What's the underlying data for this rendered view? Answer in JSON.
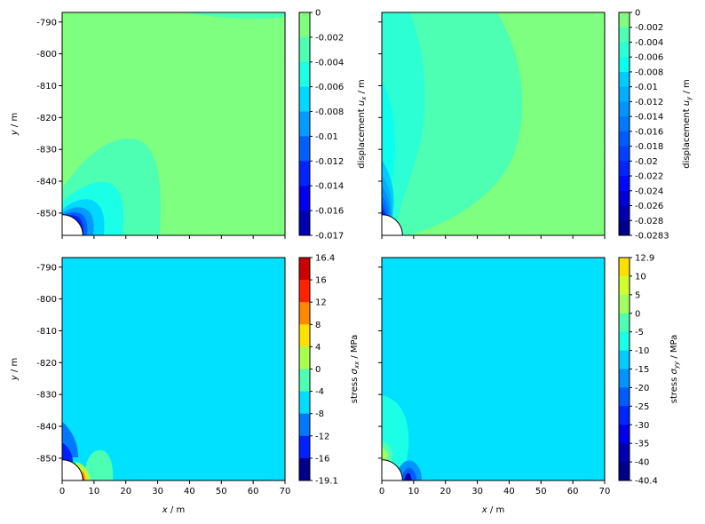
{
  "chart_data": [
    {
      "type": "heatmap",
      "quantity": "displacement u_x",
      "colorbar_label": {
        "main": "displacement ",
        "var": "u",
        "sub": "x",
        "unit": " / m"
      },
      "xlim": [
        0,
        70
      ],
      "ylim": [
        -857,
        -787
      ],
      "xticks": [
        "0",
        "10",
        "20",
        "30",
        "40",
        "50",
        "60",
        "70"
      ],
      "yticks": [
        "-790",
        "-800",
        "-810",
        "-820",
        "-830",
        "-840",
        "-850"
      ],
      "yticks_values": [
        -790,
        -800,
        -810,
        -820,
        -830,
        -840,
        -850
      ],
      "show_x_ticklabels": false,
      "show_y_ticklabels": true,
      "ylabel": "y / m",
      "xlabel": "",
      "colorbar_ticks": [
        "0",
        "-0.002",
        "-0.004",
        "-0.006",
        "-0.008",
        "-0.01",
        "-0.012",
        "-0.014",
        "-0.016",
        "-0.017"
      ],
      "colorbar_colors": [
        "#7fff7f",
        "#4dffb3",
        "#1affe6",
        "#00d8ff",
        "#009cff",
        "#0060ff",
        "#0024ff",
        "#0000ed",
        "#0000b2"
      ],
      "background_color": "#7fff7f",
      "hole": {
        "center": [
          0,
          -857
        ],
        "radius": 6.5
      }
    },
    {
      "type": "heatmap",
      "quantity": "displacement u_y",
      "colorbar_label": {
        "main": "displacement ",
        "var": "u",
        "sub": "y",
        "unit": " / m"
      },
      "xlim": [
        0,
        70
      ],
      "ylim": [
        -857,
        -787
      ],
      "xticks": [
        "0",
        "10",
        "20",
        "30",
        "40",
        "50",
        "60",
        "70"
      ],
      "yticks": [
        "-790",
        "-800",
        "-810",
        "-820",
        "-830",
        "-840",
        "-850"
      ],
      "yticks_values": [
        -790,
        -800,
        -810,
        -820,
        -830,
        -840,
        -850
      ],
      "show_x_ticklabels": false,
      "show_y_ticklabels": false,
      "ylabel": "",
      "xlabel": "",
      "colorbar_ticks": [
        "0",
        "-0.002",
        "-0.004",
        "-0.006",
        "-0.008",
        "-0.01",
        "-0.012",
        "-0.014",
        "-0.016",
        "-0.018",
        "-0.02",
        "-0.022",
        "-0.024",
        "-0.026",
        "-0.028",
        "-0.0283"
      ],
      "colorbar_colors": [
        "#7fff7f",
        "#4dffb3",
        "#2cffd3",
        "#0affee",
        "#00ccff",
        "#00b0ff",
        "#0094ff",
        "#0078ff",
        "#005cff",
        "#0040ff",
        "#0024ff",
        "#0008ff",
        "#0000d8",
        "#0000b0",
        "#00008a"
      ],
      "background_color": "#7fff7f",
      "hole": {
        "center": [
          0,
          -857
        ],
        "radius": 6.5
      }
    },
    {
      "type": "heatmap",
      "quantity": "stress sigma_xx",
      "colorbar_label": {
        "main": "stress ",
        "var": "σ",
        "sub": "xx",
        "unit": " / MPa"
      },
      "xlim": [
        0,
        70
      ],
      "ylim": [
        -857,
        -787
      ],
      "xticks": [
        "0",
        "10",
        "20",
        "30",
        "40",
        "50",
        "60",
        "70"
      ],
      "yticks": [
        "-790",
        "-800",
        "-810",
        "-820",
        "-830",
        "-840",
        "-850"
      ],
      "yticks_values": [
        -790,
        -800,
        -810,
        -820,
        -830,
        -840,
        -850
      ],
      "show_x_ticklabels": true,
      "show_y_ticklabels": true,
      "ylabel": "y / m",
      "xlabel": "x / m",
      "colorbar_ticks": [
        "16.4",
        "16",
        "12",
        "8",
        "4",
        "0",
        "-4",
        "-8",
        "-12",
        "-16",
        "-19.1"
      ],
      "colorbar_colors": [
        "#cc0000",
        "#ff2200",
        "#ff8800",
        "#ffe000",
        "#a8ff4d",
        "#4dffb3",
        "#00ddff",
        "#0078ff",
        "#0020ff",
        "#00008e"
      ],
      "background_color": "#00e0ff",
      "hole": {
        "center": [
          0,
          -857
        ],
        "radius": 6.5
      }
    },
    {
      "type": "heatmap",
      "quantity": "stress sigma_yy",
      "colorbar_label": {
        "main": "stress ",
        "var": "σ",
        "sub": "yy",
        "unit": " / MPa"
      },
      "xlim": [
        0,
        70
      ],
      "ylim": [
        -857,
        -787
      ],
      "xticks": [
        "0",
        "10",
        "20",
        "30",
        "40",
        "50",
        "60",
        "70"
      ],
      "yticks": [
        "-790",
        "-800",
        "-810",
        "-820",
        "-830",
        "-840",
        "-850"
      ],
      "yticks_values": [
        -790,
        -800,
        -810,
        -820,
        -830,
        -840,
        -850
      ],
      "show_x_ticklabels": true,
      "show_y_ticklabels": false,
      "ylabel": "",
      "xlabel": "x / m",
      "colorbar_ticks": [
        "12.9",
        "10",
        "5",
        "0",
        "-5",
        "-10",
        "-15",
        "-20",
        "-25",
        "-30",
        "-35",
        "-40",
        "-40.4"
      ],
      "colorbar_colors": [
        "#ffe000",
        "#d0ff30",
        "#a0ff60",
        "#4dffb3",
        "#1affe6",
        "#00ccff",
        "#0094ff",
        "#005cff",
        "#0024ff",
        "#0000ed",
        "#0000b2",
        "#00008a"
      ],
      "background_color": "#00e0ff",
      "hole": {
        "center": [
          0,
          -857
        ],
        "radius": 6.5
      }
    }
  ]
}
